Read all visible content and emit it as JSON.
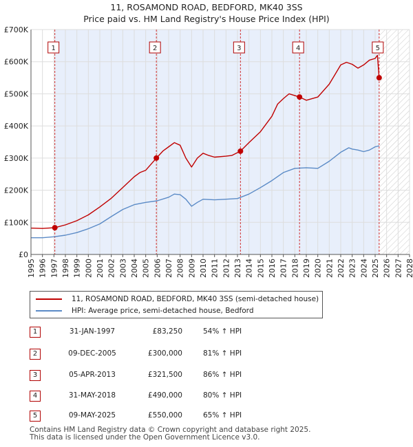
{
  "title_line1": "11, ROSAMOND ROAD, BEDFORD, MK40 3SS",
  "title_line2": "Price paid vs. HM Land Registry's House Price Index (HPI)",
  "chart_data": {
    "type": "line",
    "x_range": [
      1995,
      2028
    ],
    "y_range": [
      0,
      700000
    ],
    "y_ticks": [
      {
        "value": 0,
        "label": "£0"
      },
      {
        "value": 100000,
        "label": "£100K"
      },
      {
        "value": 200000,
        "label": "£200K"
      },
      {
        "value": 300000,
        "label": "£300K"
      },
      {
        "value": 400000,
        "label": "£400K"
      },
      {
        "value": 500000,
        "label": "£500K"
      },
      {
        "value": 600000,
        "label": "£600K"
      },
      {
        "value": 700000,
        "label": "£700K"
      }
    ],
    "x_ticks": [
      "1995",
      "1996",
      "1997",
      "1998",
      "1999",
      "2000",
      "2001",
      "2002",
      "2003",
      "2004",
      "2005",
      "2006",
      "2007",
      "2008",
      "2009",
      "2010",
      "2011",
      "2012",
      "2013",
      "2014",
      "2015",
      "2016",
      "2017",
      "2018",
      "2019",
      "2020",
      "2021",
      "2022",
      "2023",
      "2024",
      "2025",
      "2026",
      "2027",
      "2028"
    ],
    "future_from": 2025.37,
    "series": [
      {
        "name": "11, ROSAMOND ROAD, BEDFORD, MK40 3SS (semi-detached house)",
        "color": "#c00000",
        "x": [
          1995.0,
          1996.0,
          1997.08,
          1998.0,
          1999.0,
          2000.0,
          2001.0,
          2002.0,
          2003.0,
          2004.0,
          2004.5,
          2005.0,
          2005.93,
          2006.5,
          2007.0,
          2007.5,
          2008.0,
          2008.5,
          2009.0,
          2009.5,
          2010.0,
          2010.5,
          2011.0,
          2012.0,
          2012.5,
          2013.26,
          2014.0,
          2015.0,
          2016.0,
          2016.5,
          2017.0,
          2017.5,
          2018.41,
          2019.0,
          2020.0,
          2021.0,
          2021.5,
          2022.0,
          2022.5,
          2023.0,
          2023.5,
          2024.0,
          2024.5,
          2025.0,
          2025.2,
          2025.35
        ],
        "y": [
          82000,
          81000,
          83250,
          92000,
          105000,
          123000,
          148000,
          175000,
          208000,
          242000,
          255000,
          262000,
          300000,
          322000,
          335000,
          348000,
          340000,
          300000,
          272000,
          300000,
          315000,
          308000,
          303000,
          306000,
          308000,
          321500,
          348000,
          382000,
          430000,
          468000,
          485000,
          500000,
          490000,
          480000,
          490000,
          530000,
          560000,
          590000,
          598000,
          592000,
          580000,
          590000,
          605000,
          610000,
          620000,
          550000
        ]
      },
      {
        "name": "HPI: Average price, semi-detached house, Bedford",
        "color": "#5a8ac6",
        "x": [
          1995.0,
          1996.0,
          1997.0,
          1998.0,
          1999.0,
          2000.0,
          2001.0,
          2002.0,
          2003.0,
          2004.0,
          2005.0,
          2006.0,
          2007.0,
          2007.5,
          2008.0,
          2008.5,
          2009.0,
          2009.5,
          2010.0,
          2011.0,
          2012.0,
          2013.0,
          2014.0,
          2015.0,
          2016.0,
          2017.0,
          2018.0,
          2019.0,
          2020.0,
          2021.0,
          2022.0,
          2022.7,
          2023.0,
          2023.5,
          2024.0,
          2024.5,
          2025.0,
          2025.35
        ],
        "y": [
          52000,
          52000,
          55000,
          60000,
          68000,
          80000,
          95000,
          118000,
          140000,
          155000,
          162000,
          167000,
          178000,
          188000,
          186000,
          172000,
          150000,
          162000,
          172000,
          170000,
          172000,
          174000,
          188000,
          208000,
          230000,
          255000,
          268000,
          270000,
          268000,
          290000,
          318000,
          332000,
          328000,
          325000,
          320000,
          325000,
          335000,
          338000
        ]
      }
    ],
    "sales": [
      {
        "num": "1",
        "x": 1997.08,
        "y": 83250,
        "date": "31-JAN-1997",
        "price": "£83,250",
        "hpi": "54% ↑ HPI"
      },
      {
        "num": "2",
        "x": 2005.93,
        "y": 300000,
        "date": "09-DEC-2005",
        "price": "£300,000",
        "hpi": "81% ↑ HPI"
      },
      {
        "num": "3",
        "x": 2013.26,
        "y": 321500,
        "date": "05-APR-2013",
        "price": "£321,500",
        "hpi": "86% ↑ HPI"
      },
      {
        "num": "4",
        "x": 2018.41,
        "y": 490000,
        "date": "31-MAY-2018",
        "price": "£490,000",
        "hpi": "80% ↑ HPI"
      },
      {
        "num": "5",
        "x": 2025.35,
        "y": 550000,
        "date": "09-MAY-2025",
        "price": "£550,000",
        "hpi": "65% ↑ HPI"
      }
    ]
  },
  "legend": {
    "property_label": "11, ROSAMOND ROAD, BEDFORD, MK40 3SS (semi-detached house)",
    "hpi_label": "HPI: Average price, semi-detached house, Bedford"
  },
  "footer_line1": "Contains HM Land Registry data © Crown copyright and database right 2025.",
  "footer_line2": "This data is licensed under the Open Government Licence v3.0."
}
